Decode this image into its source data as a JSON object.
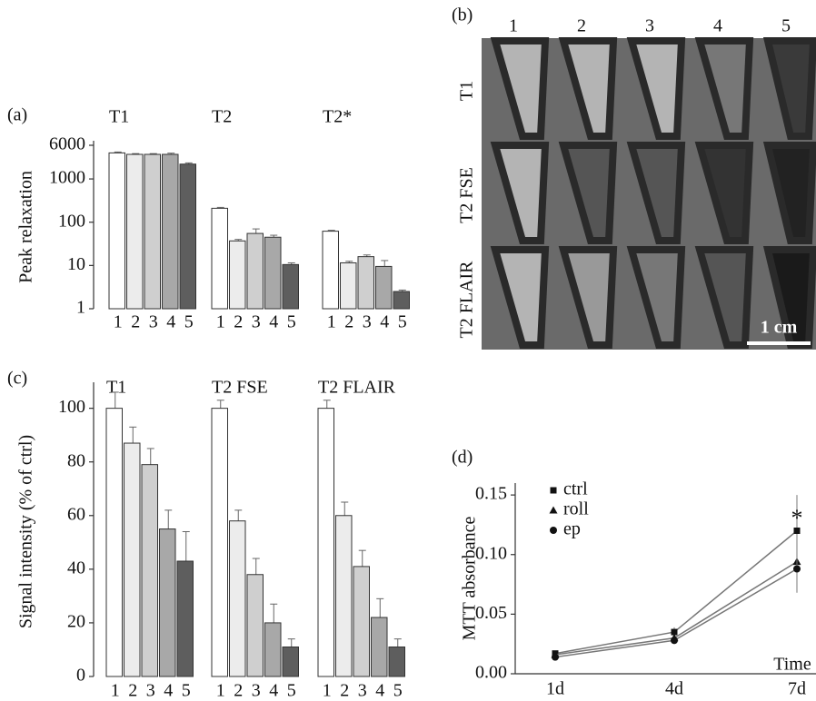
{
  "panel_labels": [
    "(a)",
    "(b)",
    "(c)",
    "(d)"
  ],
  "chart_data": [
    {
      "type": "grouped-bar",
      "ylabel": "Peak relaxation",
      "log_scale": true,
      "categories": [
        "1",
        "2",
        "3",
        "4",
        "5"
      ],
      "colors": [
        "#ffffff",
        "#ececec",
        "#cfcfcf",
        "#a8a8a8",
        "#5e5e5e"
      ],
      "groups": [
        {
          "name": "T1",
          "values": [
            4000,
            3700,
            3700,
            3700,
            2200
          ],
          "errors": [
            200,
            150,
            150,
            250,
            150
          ]
        },
        {
          "name": "T2",
          "values": [
            210,
            37,
            55,
            45,
            10.5
          ],
          "errors": [
            10,
            3,
            15,
            5,
            1
          ]
        },
        {
          "name": "T2*",
          "values": [
            62,
            11.5,
            16,
            9.5,
            2.5
          ],
          "errors": [
            3,
            1,
            1.5,
            3.5,
            0.2
          ]
        }
      ],
      "ylim": [
        1,
        6000
      ],
      "yticks": [
        1,
        10,
        100,
        1000,
        6000
      ]
    },
    {
      "type": "grouped-bar",
      "ylabel": "Signal intensity (% of ctrl)",
      "log_scale": false,
      "categories": [
        "1",
        "2",
        "3",
        "4",
        "5"
      ],
      "colors": [
        "#ffffff",
        "#ececec",
        "#cfcfcf",
        "#a8a8a8",
        "#5e5e5e"
      ],
      "groups": [
        {
          "name": "T1",
          "values": [
            100,
            87,
            79,
            55,
            43
          ],
          "errors": [
            6,
            6,
            6,
            7,
            11
          ]
        },
        {
          "name": "T2 FSE",
          "values": [
            100,
            58,
            38,
            20,
            11
          ],
          "errors": [
            3,
            4,
            6,
            7,
            3
          ]
        },
        {
          "name": "T2 FLAIR",
          "values": [
            100,
            60,
            41,
            22,
            11
          ],
          "errors": [
            3,
            5,
            6,
            7,
            3
          ]
        }
      ],
      "ylim": [
        0,
        108
      ],
      "yticks": [
        0,
        20,
        40,
        60,
        80,
        100
      ]
    },
    {
      "type": "line",
      "ylabel": "MTT absorbance",
      "xlabel": "Time",
      "annotation": "*",
      "categories": [
        "1d",
        "4d",
        "7d"
      ],
      "series": [
        {
          "name": "ctrl",
          "marker": "square",
          "color": "#777777",
          "values": [
            0.017,
            0.035,
            0.12
          ],
          "errors": [
            0.002,
            0.004,
            0.03
          ]
        },
        {
          "name": "roll",
          "marker": "triangle",
          "color": "#777777",
          "values": [
            0.016,
            0.03,
            0.094
          ],
          "errors": [
            0.002,
            0.003,
            0.02
          ]
        },
        {
          "name": "ep",
          "marker": "circle",
          "color": "#777777",
          "values": [
            0.014,
            0.028,
            0.088
          ],
          "errors": [
            0.002,
            0.003,
            0.02
          ]
        }
      ],
      "ylim": [
        0,
        0.16
      ],
      "yticks": [
        {
          "value": 0,
          "label": "0.00"
        },
        {
          "value": 0.05,
          "label": "0.05"
        },
        {
          "value": 0.1,
          "label": "0.10"
        },
        {
          "value": 0.15,
          "label": "0.15"
        }
      ]
    }
  ],
  "image_panel": {
    "columns": [
      "1",
      "2",
      "3",
      "4",
      "5"
    ],
    "rows": [
      "T1",
      "T2 FSE",
      "T2 FLAIR"
    ],
    "scale_bar": "1 cm"
  }
}
